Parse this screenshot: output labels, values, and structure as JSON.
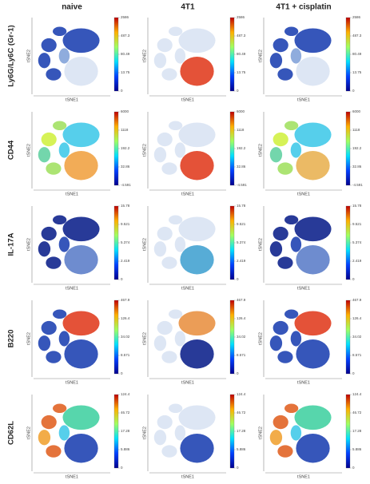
{
  "columns": [
    "naive",
    "4T1",
    "4T1 + cisplatin"
  ],
  "x_axis_label": "tSNE1",
  "y_axis_label": "tSNE2",
  "rows": [
    {
      "label": "Ly6G/Ly6C (Gr-1)",
      "colorbar": [
        "2586",
        "487.3",
        "80.49",
        "13.75",
        "0"
      ]
    },
    {
      "label": "CD44",
      "colorbar": [
        "6000",
        "1118",
        "192.2",
        "32.86",
        "-4.591"
      ]
    },
    {
      "label": "IL-17A",
      "colorbar": [
        "15.78",
        "9.521",
        "5.374",
        "2.419",
        "0"
      ]
    },
    {
      "label": "B220",
      "colorbar": [
        "467.9",
        "126.4",
        "34.02",
        "8.571",
        "0"
      ]
    },
    {
      "label": "CD62L",
      "colorbar": [
        "124.4",
        "46.72",
        "17.28",
        "5.886",
        "0"
      ]
    }
  ]
}
